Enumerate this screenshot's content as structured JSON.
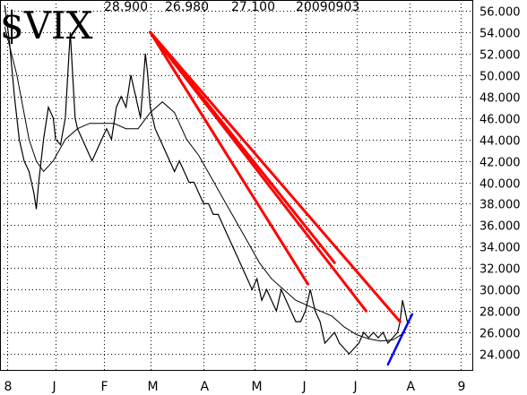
{
  "chart_data": {
    "type": "line",
    "symbol": "$VIX",
    "header_values": [
      "28.900",
      "26.980",
      "27.100"
    ],
    "header_date": "20090903",
    "ylim": [
      22.5,
      57.0
    ],
    "yticks": [
      24,
      26,
      28,
      30,
      32,
      34,
      36,
      38,
      40,
      42,
      44,
      46,
      48,
      50,
      52,
      54,
      56
    ],
    "ytick_labels": [
      "24.000",
      "26.000",
      "28.000",
      "30.000",
      "32.000",
      "34.000",
      "36.000",
      "38.000",
      "40.000",
      "42.000",
      "44.000",
      "46.000",
      "48.000",
      "50.000",
      "52.000",
      "54.000",
      "56.000"
    ],
    "x_day_range": [
      0,
      168
    ],
    "month_gridlines": [
      {
        "label": "8",
        "day": 1
      },
      {
        "label": "J",
        "day": 21
      },
      {
        "label": "F",
        "day": 41
      },
      {
        "label": "M",
        "day": 60
      },
      {
        "label": "A",
        "day": 82
      },
      {
        "label": "M",
        "day": 103
      },
      {
        "label": "J",
        "day": 124
      },
      {
        "label": "J",
        "day": 145
      },
      {
        "label": "A",
        "day": 167
      },
      {
        "label": "9",
        "day": 188
      }
    ],
    "price_close": [
      [
        0,
        56.5
      ],
      [
        2,
        53
      ],
      [
        4,
        48
      ],
      [
        6,
        44
      ],
      [
        8,
        42
      ],
      [
        10,
        41
      ],
      [
        12,
        39
      ],
      [
        13,
        37.5
      ],
      [
        14,
        40
      ],
      [
        16,
        44
      ],
      [
        18,
        47
      ],
      [
        20,
        46
      ],
      [
        21,
        44
      ],
      [
        23,
        43.5
      ],
      [
        25,
        46
      ],
      [
        26,
        50
      ],
      [
        27,
        54
      ],
      [
        28,
        50
      ],
      [
        29,
        46
      ],
      [
        30,
        45
      ],
      [
        32,
        44
      ],
      [
        34,
        43
      ],
      [
        36,
        42
      ],
      [
        38,
        43
      ],
      [
        40,
        44
      ],
      [
        42,
        45
      ],
      [
        44,
        44
      ],
      [
        46,
        47
      ],
      [
        48,
        48
      ],
      [
        50,
        47
      ],
      [
        52,
        50
      ],
      [
        54,
        48
      ],
      [
        56,
        46
      ],
      [
        57,
        49
      ],
      [
        58,
        52
      ],
      [
        59,
        50
      ],
      [
        60,
        47
      ],
      [
        62,
        45
      ],
      [
        64,
        44
      ],
      [
        66,
        43
      ],
      [
        68,
        42
      ],
      [
        70,
        41
      ],
      [
        72,
        42
      ],
      [
        74,
        41
      ],
      [
        76,
        40
      ],
      [
        78,
        40
      ],
      [
        80,
        39
      ],
      [
        82,
        38
      ],
      [
        84,
        38
      ],
      [
        86,
        37
      ],
      [
        88,
        37
      ],
      [
        90,
        36
      ],
      [
        92,
        35
      ],
      [
        94,
        34
      ],
      [
        96,
        33
      ],
      [
        98,
        32
      ],
      [
        100,
        31
      ],
      [
        102,
        30
      ],
      [
        104,
        31
      ],
      [
        106,
        29
      ],
      [
        108,
        30
      ],
      [
        110,
        29
      ],
      [
        112,
        28
      ],
      [
        114,
        30
      ],
      [
        116,
        29
      ],
      [
        118,
        28
      ],
      [
        120,
        27
      ],
      [
        122,
        27
      ],
      [
        124,
        28
      ],
      [
        126,
        30
      ],
      [
        128,
        28
      ],
      [
        130,
        27
      ],
      [
        132,
        25
      ],
      [
        134,
        25.5
      ],
      [
        136,
        26
      ],
      [
        138,
        25
      ],
      [
        140,
        24.5
      ],
      [
        142,
        24
      ],
      [
        144,
        24.5
      ],
      [
        146,
        25
      ],
      [
        148,
        26
      ],
      [
        150,
        25.5
      ],
      [
        152,
        26
      ],
      [
        154,
        25.5
      ],
      [
        156,
        26
      ],
      [
        158,
        25
      ],
      [
        160,
        25.5
      ],
      [
        162,
        26
      ],
      [
        163,
        27
      ],
      [
        164,
        29
      ],
      [
        165,
        28
      ],
      [
        166,
        27
      ],
      [
        167,
        27.1
      ]
    ],
    "moving_average": [
      [
        0,
        54.5
      ],
      [
        5,
        50
      ],
      [
        10,
        44
      ],
      [
        13,
        42
      ],
      [
        16,
        41
      ],
      [
        20,
        42
      ],
      [
        25,
        44
      ],
      [
        30,
        45
      ],
      [
        35,
        45.5
      ],
      [
        40,
        45.5
      ],
      [
        45,
        45.5
      ],
      [
        50,
        45
      ],
      [
        55,
        45
      ],
      [
        60,
        46.5
      ],
      [
        65,
        47.5
      ],
      [
        70,
        46.5
      ],
      [
        75,
        44
      ],
      [
        80,
        42.5
      ],
      [
        85,
        40.5
      ],
      [
        90,
        38.5
      ],
      [
        95,
        36.5
      ],
      [
        100,
        34.5
      ],
      [
        105,
        32.5
      ],
      [
        110,
        31
      ],
      [
        115,
        30
      ],
      [
        120,
        29
      ],
      [
        125,
        28.5
      ],
      [
        130,
        28
      ],
      [
        135,
        27.5
      ],
      [
        140,
        26.5
      ],
      [
        145,
        25.8
      ],
      [
        150,
        25.4
      ],
      [
        155,
        25.2
      ],
      [
        160,
        25.3
      ],
      [
        165,
        26
      ]
    ],
    "trendlines_red": [
      {
        "from": [
          60,
          54
        ],
        "to": [
          125,
          30.5
        ]
      },
      {
        "from": [
          60,
          54
        ],
        "to": [
          136,
          32.5
        ]
      },
      {
        "from": [
          60,
          54
        ],
        "to": [
          149,
          28
        ]
      },
      {
        "from": [
          60,
          54
        ],
        "to": [
          163,
          27
        ]
      }
    ],
    "trendline_blue": {
      "from": [
        158,
        23
      ],
      "to": [
        168,
        27.7
      ]
    },
    "colors": {
      "price": "#000000",
      "grid": "#000000",
      "trendlines": "#ff0000",
      "support_line": "#0000ff",
      "background": "#ffffff"
    },
    "grid": true
  }
}
